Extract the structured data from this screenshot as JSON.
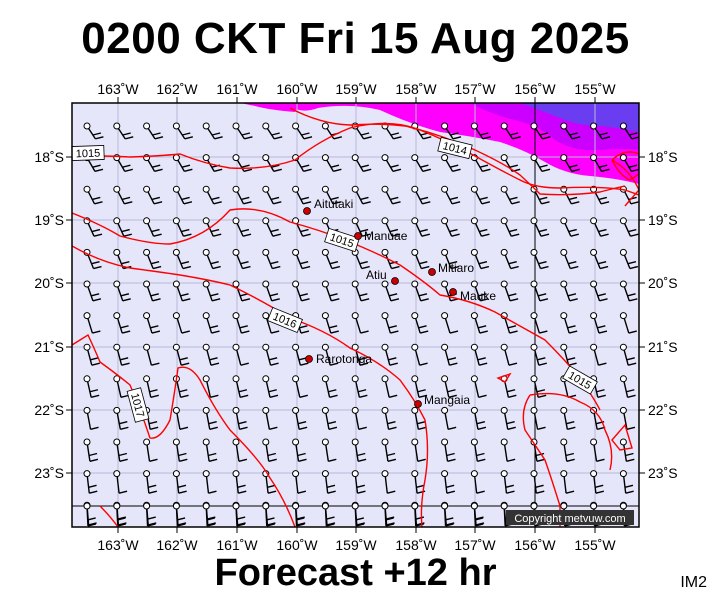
{
  "title": "0200 CKT Fri 15 Aug 2025",
  "subtitle": "Forecast +12 hr",
  "image_code": "IM2",
  "copyright": "Copyright metvuw.com",
  "colors": {
    "background": "#e6e6fa",
    "isobar": "#ff0000",
    "frame": "#000000",
    "rain_light": "#ff00ff",
    "rain_mid": "#cc00ff",
    "rain_heavy": "#6a3df0",
    "place_dot": "#cc0000"
  },
  "lon_labels": [
    "163˚W",
    "162˚W",
    "161˚W",
    "160˚W",
    "159˚W",
    "158˚W",
    "157˚W",
    "156˚W",
    "155˚W"
  ],
  "lat_labels": [
    "18˚S",
    "19˚S",
    "20˚S",
    "21˚S",
    "22˚S",
    "23˚S"
  ],
  "places": [
    {
      "name": "Aitutaki"
    },
    {
      "name": "Manuae"
    },
    {
      "name": "Atiu"
    },
    {
      "name": "Mitiaro"
    },
    {
      "name": "Mauke"
    },
    {
      "name": "Rarotonga"
    },
    {
      "name": "Mangaia"
    }
  ],
  "isobar_labels": [
    "1015",
    "1014",
    "1015",
    "1016",
    "1017",
    "1015"
  ]
}
